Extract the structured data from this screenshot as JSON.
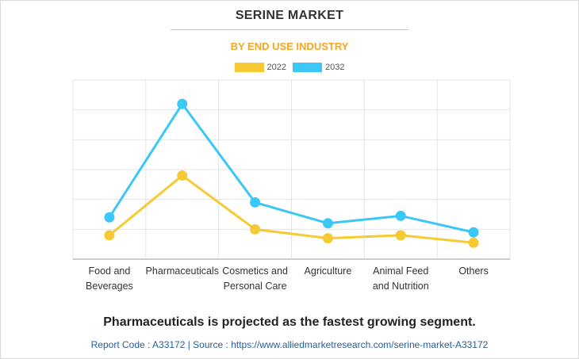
{
  "header": {
    "title": "SERINE MARKET",
    "subtitle": "BY END USE INDUSTRY"
  },
  "colors": {
    "accent": "#f5a623",
    "series_2022": "#f6c935",
    "series_2032": "#3cc8f7",
    "footer": "#2b5d9c"
  },
  "chart_data": {
    "type": "line",
    "categories": [
      [
        "Food and",
        "Beverages"
      ],
      [
        "Pharmaceuticals"
      ],
      [
        "Cosmetics and",
        "Personal Care"
      ],
      [
        "Agriculture"
      ],
      [
        "Animal Feed",
        "and Nutrition"
      ],
      [
        "Others"
      ]
    ],
    "series": [
      {
        "name": "2022",
        "values": [
          8,
          28,
          10,
          7,
          8,
          5.5
        ]
      },
      {
        "name": "2032",
        "values": [
          14,
          52,
          19,
          12,
          14.5,
          9
        ]
      }
    ],
    "ylim": [
      0,
      60
    ],
    "grid": true,
    "legend_position": "top-center",
    "y_tick_labels_shown": false
  },
  "headline": "Pharmaceuticals is projected as the fastest growing segment.",
  "footer": {
    "text": "Report Code : A33172  |  Source : https://www.alliedmarketresearch.com/serine-market-A33172"
  }
}
